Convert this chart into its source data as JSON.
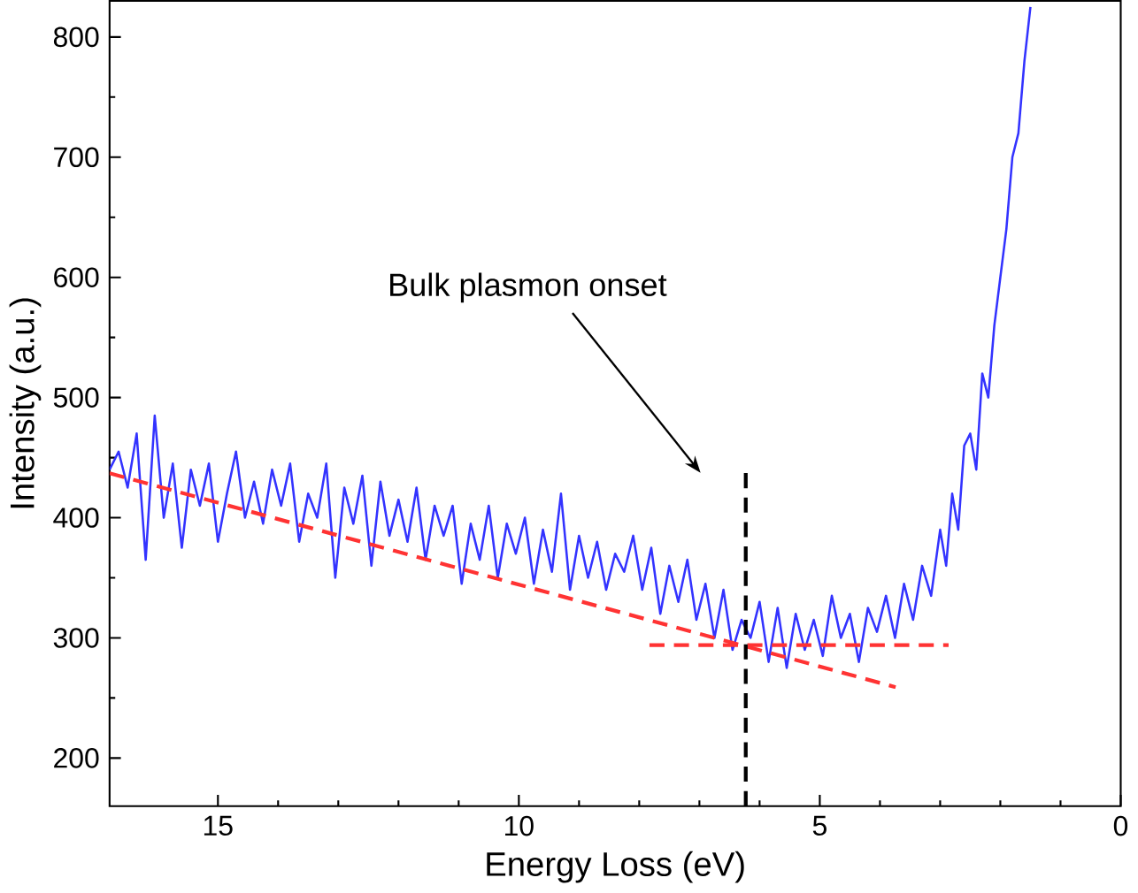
{
  "chart_data": {
    "type": "line",
    "xlabel": "Energy Loss (eV)",
    "ylabel": "Intensity (a.u.)",
    "xlim": [
      16.8,
      0
    ],
    "ylim": [
      160,
      830
    ],
    "xticks": [
      15,
      10,
      5,
      0
    ],
    "yticks": [
      200,
      300,
      400,
      500,
      600,
      700,
      800
    ],
    "grid": false,
    "marker": "none",
    "annotations": [
      "Bulk plasmon onset"
    ],
    "series": [
      {
        "color": "#3333ff",
        "line_style": "solid",
        "x": [
          16.8,
          16.65,
          16.5,
          16.35,
          16.2,
          16.05,
          15.9,
          15.75,
          15.6,
          15.45,
          15.3,
          15.15,
          15.0,
          14.85,
          14.7,
          14.55,
          14.4,
          14.25,
          14.1,
          13.95,
          13.8,
          13.65,
          13.5,
          13.35,
          13.2,
          13.05,
          12.9,
          12.75,
          12.6,
          12.45,
          12.3,
          12.15,
          12.0,
          11.85,
          11.7,
          11.55,
          11.4,
          11.25,
          11.1,
          10.95,
          10.8,
          10.65,
          10.5,
          10.35,
          10.2,
          10.05,
          9.9,
          9.75,
          9.6,
          9.45,
          9.3,
          9.15,
          9.0,
          8.85,
          8.7,
          8.55,
          8.4,
          8.25,
          8.1,
          7.95,
          7.8,
          7.65,
          7.5,
          7.35,
          7.2,
          7.05,
          6.9,
          6.75,
          6.6,
          6.45,
          6.3,
          6.15,
          6.0,
          5.85,
          5.7,
          5.55,
          5.4,
          5.25,
          5.1,
          4.95,
          4.8,
          4.65,
          4.5,
          4.35,
          4.2,
          4.05,
          3.9,
          3.75,
          3.6,
          3.45,
          3.3,
          3.15,
          3.0,
          2.9,
          2.8,
          2.7,
          2.6,
          2.5,
          2.4,
          2.3,
          2.2,
          2.1,
          2.0,
          1.9,
          1.8,
          1.7,
          1.6,
          1.5
        ],
        "values": [
          440,
          455,
          425,
          470,
          365,
          485,
          400,
          445,
          375,
          440,
          410,
          445,
          380,
          420,
          455,
          400,
          430,
          395,
          440,
          410,
          445,
          380,
          420,
          400,
          445,
          350,
          425,
          395,
          435,
          360,
          430,
          385,
          415,
          380,
          425,
          365,
          410,
          385,
          410,
          345,
          395,
          365,
          410,
          350,
          395,
          370,
          400,
          345,
          390,
          355,
          420,
          340,
          385,
          350,
          380,
          340,
          370,
          355,
          385,
          340,
          375,
          320,
          360,
          330,
          365,
          315,
          345,
          300,
          340,
          290,
          315,
          300,
          330,
          280,
          325,
          275,
          320,
          290,
          315,
          285,
          335,
          300,
          320,
          280,
          325,
          305,
          335,
          300,
          345,
          315,
          360,
          335,
          390,
          360,
          420,
          390,
          460,
          470,
          440,
          520,
          500,
          560,
          600,
          640,
          700,
          720,
          780,
          825
        ]
      },
      {
        "color": "#ff3333",
        "line_style": "dashed",
        "x": [
          16.8,
          3.74
        ],
        "values": [
          437,
          259
        ]
      },
      {
        "color": "#ff3333",
        "line_style": "dashed",
        "x": [
          7.83,
          2.86
        ],
        "values": [
          294,
          294
        ]
      },
      {
        "color": "#000000",
        "line_style": "dashed",
        "x": [
          6.23,
          6.23
        ],
        "values": [
          160,
          442
        ]
      }
    ]
  }
}
